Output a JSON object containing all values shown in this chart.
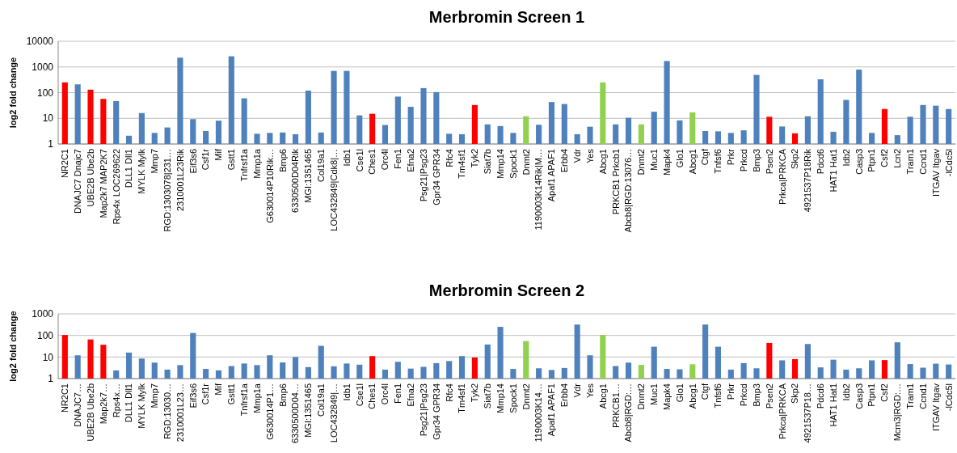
{
  "chart_data": [
    {
      "type": "bar",
      "title": "Merbromin Screen 1",
      "ylabel": "log2 fold change",
      "log": true,
      "grid": "y",
      "ylim": [
        1,
        10000
      ],
      "yticks": [
        1,
        10,
        100,
        1000,
        10000
      ],
      "categories": [
        "NR2C1",
        "DNAJC7 Dnajc7",
        "UBE2B Ube2b",
        "Map2k7 MAP2K7",
        "Rps4x LOC269622",
        "DLL1 Dll1",
        "MYLK Mylk",
        "Mmp7",
        "RGD:1303078|231…",
        "2310001L23Rik",
        "Eif3s6",
        "Csf1r",
        "Mif",
        "Gstt1",
        "Tnfrsf1a",
        "Mmp1a",
        "G630014P10Rik…",
        "Bmp6",
        "6330500D04Rik",
        "MGI:1351465",
        "Col19a1",
        "LOC432849|Cdk8|…",
        "Idb1",
        "Cse1l",
        "Ches1",
        "Orc4l",
        "Fen1",
        "Efna2",
        "Psg21|Psg23",
        "Gpr34 GPR34",
        "Rfc4",
        "Tm4sf1",
        "Tyk2",
        "Siat7b",
        "Mmp14",
        "Spock1",
        "Dnmt2",
        "1190003K14Rik|M…",
        "Apaf1 APAF1",
        "Erbb4",
        "Vdr",
        "Yes",
        "Abcg1",
        "PRKCB1 Prkcb1",
        "Abcb8|RGD:13076…",
        "Dnmt2",
        "Muc1",
        "Mapk4",
        "Glo1",
        "Abcg1",
        "Ctgf",
        "Tnfsf6",
        "Prkr",
        "Prkcd",
        "Bmp3",
        "Psen2",
        "Prkca|PRKCA",
        "Skp2",
        "4921537P18Rik",
        "Pdcd6",
        "HAT1 Hat1",
        "Idb2",
        "Casp3",
        "Ptpn1",
        "Csf2",
        "Lcn2",
        "Tram1",
        "Ccnd1",
        "ITGAV Itgav",
        "-lCdc5l"
      ],
      "values": [
        250,
        210,
        130,
        57,
        47,
        2.1,
        16,
        2.7,
        4.4,
        2300,
        9.3,
        3.2,
        8.1,
        2600,
        60,
        2.5,
        2.7,
        2.8,
        2.4,
        120,
        2.8,
        700,
        700,
        13,
        15,
        5.5,
        70,
        28,
        150,
        105,
        2.5,
        2.4,
        33,
        5.8,
        5,
        2.7,
        12,
        5.6,
        43,
        36,
        2.4,
        4.7,
        250,
        5.8,
        10.5,
        5.8,
        18,
        1700,
        8.3,
        17,
        3.2,
        3.1,
        2.7,
        3.4,
        490,
        11.5,
        4.8,
        2.6,
        12,
        330,
        3,
        52,
        790,
        2.7,
        23,
        2.2,
        11.5,
        33,
        31,
        23
      ],
      "colors": [
        "#ff0000",
        "#4f81bd",
        "#ff0000",
        "#ff0000",
        "#4f81bd",
        "#4f81bd",
        "#4f81bd",
        "#4f81bd",
        "#4f81bd",
        "#4f81bd",
        "#4f81bd",
        "#4f81bd",
        "#4f81bd",
        "#4f81bd",
        "#4f81bd",
        "#4f81bd",
        "#4f81bd",
        "#4f81bd",
        "#4f81bd",
        "#4f81bd",
        "#4f81bd",
        "#4f81bd",
        "#4f81bd",
        "#4f81bd",
        "#ff0000",
        "#4f81bd",
        "#4f81bd",
        "#4f81bd",
        "#4f81bd",
        "#4f81bd",
        "#4f81bd",
        "#4f81bd",
        "#ff0000",
        "#4f81bd",
        "#4f81bd",
        "#4f81bd",
        "#92d050",
        "#4f81bd",
        "#4f81bd",
        "#4f81bd",
        "#4f81bd",
        "#4f81bd",
        "#92d050",
        "#4f81bd",
        "#4f81bd",
        "#92d050",
        "#4f81bd",
        "#4f81bd",
        "#4f81bd",
        "#92d050",
        "#4f81bd",
        "#4f81bd",
        "#4f81bd",
        "#4f81bd",
        "#4f81bd",
        "#ff0000",
        "#4f81bd",
        "#ff0000",
        "#4f81bd",
        "#4f81bd",
        "#4f81bd",
        "#4f81bd",
        "#4f81bd",
        "#4f81bd",
        "#ff0000",
        "#4f81bd",
        "#4f81bd",
        "#4f81bd",
        "#4f81bd",
        "#4f81bd"
      ]
    },
    {
      "type": "bar",
      "title": "Merbromin Screen 2",
      "ylabel": "log2 fold change",
      "log": true,
      "grid": "y",
      "ylim": [
        1,
        1000
      ],
      "yticks": [
        1,
        10,
        100,
        1000
      ],
      "categories": [
        "NR2C1",
        "DNAJC7…",
        "UBE2B Ube2b",
        "Map2k7…",
        "Rps4x…",
        "DLL1 Dll1",
        "MYLK Mylk",
        "Mmp7",
        "RGD:13030…",
        "2310001L23…",
        "Eif3s6",
        "Csf1r",
        "Mif",
        "Gstt1",
        "Tnfrsf1a",
        "Mmp1a",
        "G630014P1…",
        "Bmp6",
        "6330500D04…",
        "MGI:1351465",
        "Col19a1",
        "LOC432849|…",
        "Idb1",
        "Cse1l",
        "Ches1",
        "Orc4l",
        "Fen1",
        "Efna2",
        "Psg21|Psg23",
        "Gpr34 GPR34",
        "Rfc4",
        "Tm4sf1",
        "Tyk2",
        "Siat7b",
        "Mmp14",
        "Spock1",
        "Dnmt2",
        "1190003K14…",
        "Apaf1 APAF1",
        "Erbb4",
        "Vdr",
        "Yes",
        "Abcg1",
        "PRKCB1…",
        "Abcb8|RGD:…",
        "Dnmt2",
        "Muc1",
        "Mapk4",
        "Glo1",
        "Abcg1",
        "Ctgf",
        "Tnfsf6",
        "Prkr",
        "Prkcd",
        "Bmp3",
        "Psen2",
        "Prkca|PRKCA",
        "Skp2",
        "4921537P18…",
        "Pdcd6",
        "HAT1 Hat1",
        "Idb2",
        "Casp3",
        "Ptpn1",
        "Csf2",
        "Mcm3|RGD:…",
        "Tram1",
        "Ccnd1",
        "ITGAV Itgav",
        "-lCdc5l"
      ],
      "values": [
        105,
        12,
        65,
        37,
        2.4,
        16,
        8.5,
        5.5,
        2.6,
        4.2,
        130,
        2.8,
        2.4,
        3.8,
        5,
        4.2,
        12,
        5.6,
        10,
        3.4,
        33,
        3.7,
        5,
        4.4,
        11,
        2.6,
        6,
        2.9,
        3.5,
        5.2,
        6.5,
        11,
        9.5,
        38,
        250,
        2.8,
        55,
        3,
        2.5,
        3.1,
        320,
        12,
        105,
        3.8,
        5.5,
        4.3,
        30,
        2.8,
        2.7,
        4.6,
        320,
        30,
        2.6,
        5.2,
        3,
        45,
        7,
        8,
        40,
        3.3,
        7.5,
        2.6,
        3,
        7,
        7.2,
        48,
        4.7,
        3.2,
        4.9,
        4.5
      ],
      "colors": [
        "#ff0000",
        "#4f81bd",
        "#ff0000",
        "#ff0000",
        "#4f81bd",
        "#4f81bd",
        "#4f81bd",
        "#4f81bd",
        "#4f81bd",
        "#4f81bd",
        "#4f81bd",
        "#4f81bd",
        "#4f81bd",
        "#4f81bd",
        "#4f81bd",
        "#4f81bd",
        "#4f81bd",
        "#4f81bd",
        "#4f81bd",
        "#4f81bd",
        "#4f81bd",
        "#4f81bd",
        "#4f81bd",
        "#4f81bd",
        "#ff0000",
        "#4f81bd",
        "#4f81bd",
        "#4f81bd",
        "#4f81bd",
        "#4f81bd",
        "#4f81bd",
        "#4f81bd",
        "#ff0000",
        "#4f81bd",
        "#4f81bd",
        "#4f81bd",
        "#92d050",
        "#4f81bd",
        "#4f81bd",
        "#4f81bd",
        "#4f81bd",
        "#4f81bd",
        "#92d050",
        "#4f81bd",
        "#4f81bd",
        "#92d050",
        "#4f81bd",
        "#4f81bd",
        "#4f81bd",
        "#92d050",
        "#4f81bd",
        "#4f81bd",
        "#4f81bd",
        "#4f81bd",
        "#4f81bd",
        "#ff0000",
        "#4f81bd",
        "#ff0000",
        "#4f81bd",
        "#4f81bd",
        "#4f81bd",
        "#4f81bd",
        "#4f81bd",
        "#4f81bd",
        "#ff0000",
        "#4f81bd",
        "#4f81bd",
        "#4f81bd",
        "#4f81bd",
        "#4f81bd"
      ]
    }
  ]
}
